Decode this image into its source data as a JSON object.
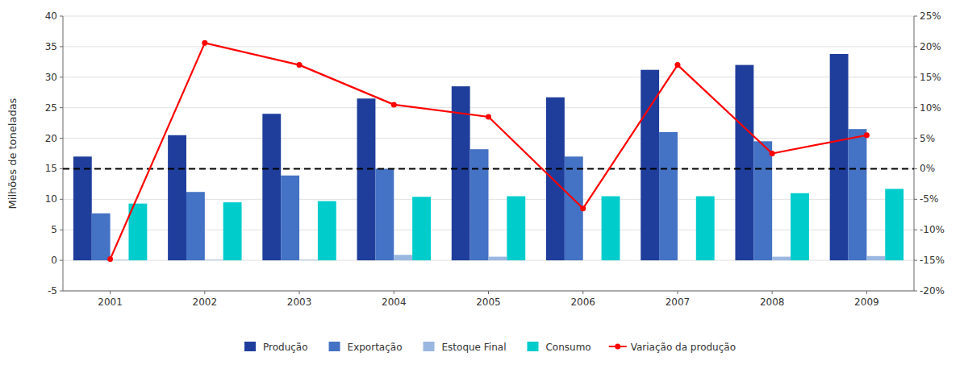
{
  "chart_data": {
    "type": "bar",
    "categories": [
      "2001",
      "2002",
      "2003",
      "2004",
      "2005",
      "2006",
      "2007",
      "2008",
      "2009"
    ],
    "series": [
      {
        "name": "Produção",
        "color": "#1f3e9c",
        "values": [
          17.0,
          20.5,
          24.0,
          26.5,
          28.5,
          26.7,
          31.2,
          32.0,
          33.8
        ]
      },
      {
        "name": "Exportação",
        "color": "#4472c4",
        "values": [
          7.7,
          11.2,
          13.9,
          15.0,
          18.2,
          17.0,
          21.0,
          19.5,
          21.5
        ]
      },
      {
        "name": "Estoque Final",
        "color": "#9ab7e0",
        "values": [
          0.1,
          0.1,
          0.1,
          0.9,
          0.6,
          0.0,
          0.0,
          0.6,
          0.7
        ]
      },
      {
        "name": "Consumo",
        "color": "#00cccc",
        "values": [
          9.3,
          9.5,
          9.7,
          10.4,
          10.5,
          10.5,
          10.5,
          11.0,
          11.7
        ]
      },
      {
        "name": "Variação da produção",
        "type": "line",
        "axis": "y2",
        "color": "#ff0000",
        "marker": "circle",
        "values": [
          -14.8,
          20.6,
          17.0,
          10.5,
          8.5,
          -6.5,
          17.0,
          2.5,
          5.5
        ]
      }
    ],
    "ylabel": "Milhões de toneladas",
    "ylim": [
      -5,
      40
    ],
    "yticks": [
      -5,
      0,
      5,
      10,
      15,
      20,
      25,
      30,
      35,
      40
    ],
    "y2lim": [
      -20,
      25
    ],
    "y2ticks": [
      {
        "value": -20,
        "label": "-20%"
      },
      {
        "value": -15,
        "label": "-15%"
      },
      {
        "value": -10,
        "label": "-10%"
      },
      {
        "value": -5,
        "label": "-5%"
      },
      {
        "value": 0,
        "label": "0%"
      },
      {
        "value": 5,
        "label": "5%"
      },
      {
        "value": 10,
        "label": "10%"
      },
      {
        "value": 15,
        "label": "15%"
      },
      {
        "value": 20,
        "label": "20%"
      },
      {
        "value": 25,
        "label": "25%"
      }
    ],
    "reference_line": {
      "value": 15,
      "color": "#000000",
      "line_style": "dashed"
    },
    "grid": true,
    "legend": "bottom"
  }
}
